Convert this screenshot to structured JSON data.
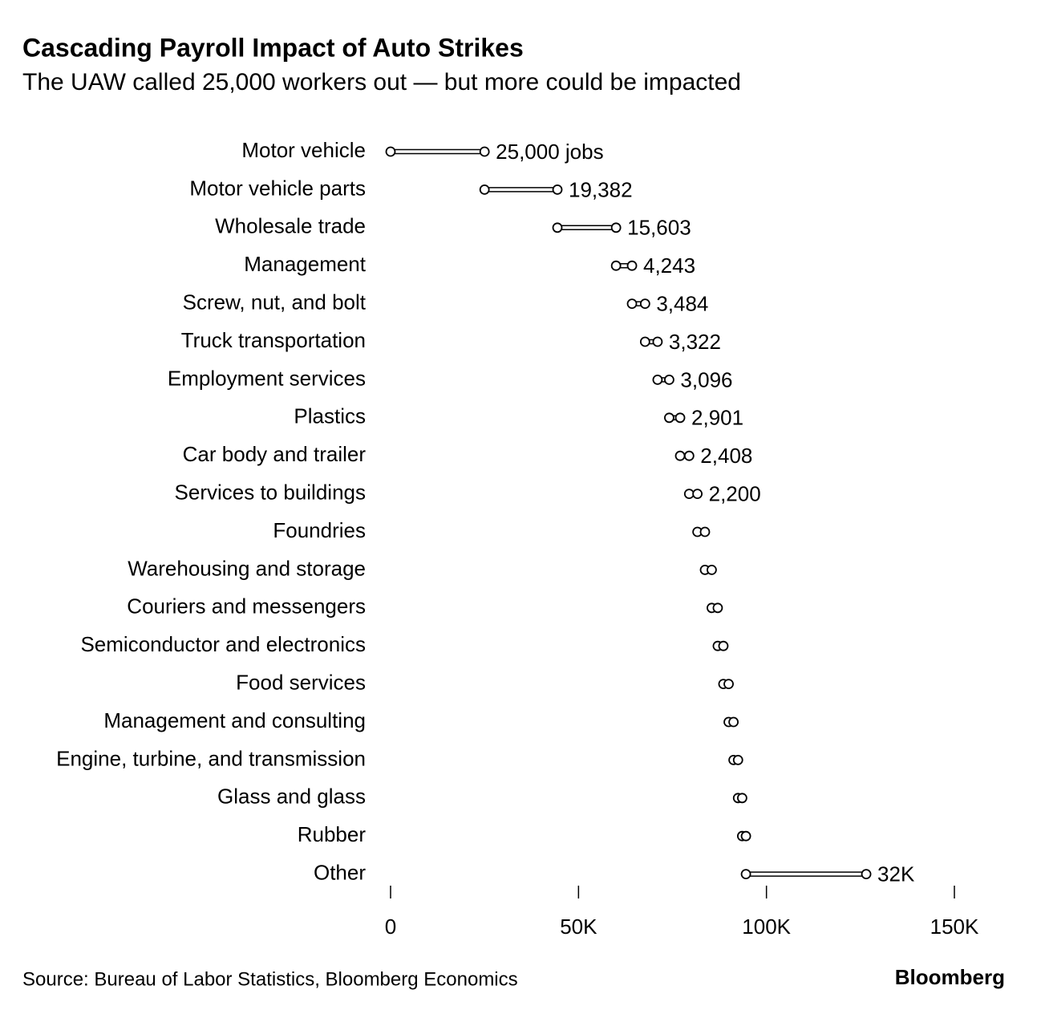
{
  "chart_data": {
    "type": "waterfall",
    "title": "Cascading Payroll Impact of Auto Strikes",
    "subtitle": "The UAW called 25,000 workers out — but more could be impacted",
    "categories": [
      "Motor vehicle",
      "Motor vehicle parts",
      "Wholesale trade",
      "Management",
      "Screw, nut, and bolt",
      "Truck transportation",
      "Employment services",
      "Plastics",
      "Car body and trailer",
      "Services to buildings",
      "Foundries",
      "Warehousing and storage",
      "Couriers and messengers",
      "Semiconductor and electronics",
      "Food services",
      "Management and consulting",
      "Engine, turbine, and transmission",
      "Glass and glass",
      "Rubber",
      "Other"
    ],
    "values": [
      25000,
      19382,
      15603,
      4243,
      3484,
      3322,
      3096,
      2901,
      2408,
      2200,
      2000,
      1800,
      1600,
      1500,
      1400,
      1300,
      1200,
      1100,
      1000,
      32000
    ],
    "value_labels": [
      "25,000 jobs",
      "19,382",
      "15,603",
      "4,243",
      "3,484",
      "3,322",
      "3,096",
      "2,901",
      "2,408",
      "2,200",
      null,
      null,
      null,
      null,
      null,
      null,
      null,
      null,
      null,
      "32K"
    ],
    "color": "#000000",
    "xlim": [
      0,
      150000
    ],
    "xticks": [
      0,
      {
        "value": 50000,
        "label": "50K"
      },
      {
        "value": 100000,
        "label": "100K"
      },
      {
        "value": 150000,
        "label": "150K"
      }
    ],
    "source": "Source: Bureau of Labor Statistics, Bloomberg Economics",
    "brand": "Bloomberg"
  }
}
